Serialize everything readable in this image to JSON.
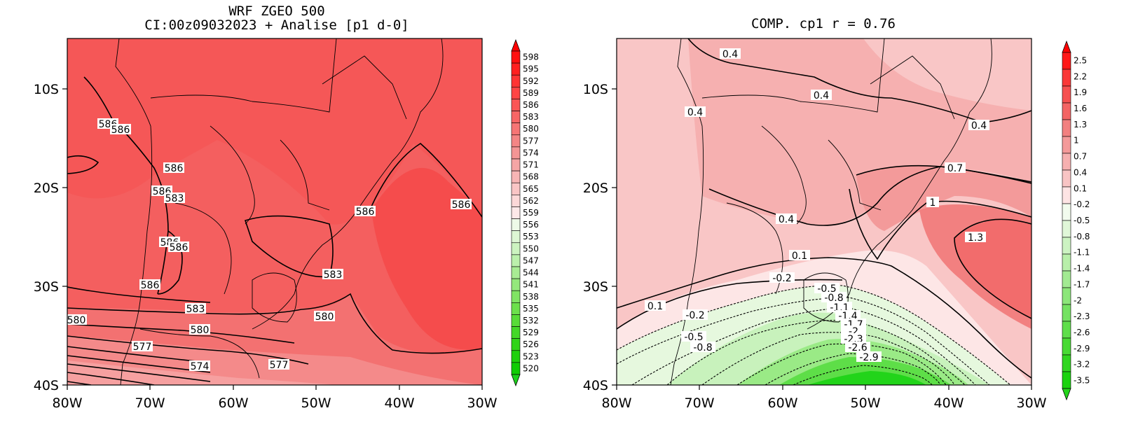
{
  "panels": [
    {
      "id": "left",
      "title_line1": "WRF ZGEO 500",
      "title_line2": "CI:00z09032023 + Analise  [p1 d-0]",
      "x_ticks": [
        "80W",
        "70W",
        "60W",
        "50W",
        "40W",
        "30W"
      ],
      "y_ticks": [
        "10S",
        "20S",
        "30S",
        "40S"
      ],
      "colorbar": {
        "labels": [
          "598",
          "595",
          "592",
          "589",
          "586",
          "583",
          "580",
          "577",
          "574",
          "571",
          "568",
          "565",
          "562",
          "559",
          "556",
          "553",
          "550",
          "547",
          "544",
          "541",
          "538",
          "535",
          "532",
          "529",
          "526",
          "523",
          "520"
        ],
        "colors": [
          "#ff1010",
          "#ff2020",
          "#ff3434",
          "#ff4545",
          "#fa5555",
          "#f86565",
          "#f67575",
          "#f48585",
          "#f49595",
          "#f5a5a5",
          "#f7b5b5",
          "#f9c5c5",
          "#fcd8d8",
          "#fde8e8",
          "#eefae8",
          "#ddf6d4",
          "#ccf3c0",
          "#bbf0ac",
          "#a8ec94",
          "#94e87c",
          "#80e464",
          "#6ce04c",
          "#58dc38",
          "#44d828",
          "#30d418",
          "#1ed00c",
          "#10cc04"
        ],
        "top_arrow_color": "#ff0000",
        "bottom_arrow_color": "#1cd21c"
      },
      "contour_labels": [
        "586",
        "586",
        "586",
        "586",
        "583",
        "586",
        "586",
        "586",
        "586",
        "583",
        "586",
        "580",
        "583",
        "580",
        "580",
        "577",
        "574",
        "577"
      ]
    },
    {
      "id": "right",
      "title_line1": "COMP. cp1   r =   0.76",
      "title_line2": "",
      "x_ticks": [
        "80W",
        "70W",
        "60W",
        "50W",
        "40W",
        "30W"
      ],
      "y_ticks": [
        "10S",
        "20S",
        "30S",
        "40S"
      ],
      "colorbar": {
        "labels": [
          "2.5",
          "2.2",
          "1.9",
          "1.6",
          "1.3",
          "1",
          "0.7",
          "0.4",
          "0.1",
          "-0.2",
          "-0.5",
          "-0.8",
          "-1.1",
          "-1.4",
          "-1.7",
          "-2",
          "-2.3",
          "-2.6",
          "-2.9",
          "-3.2",
          "-3.5"
        ],
        "colors": [
          "#ff1818",
          "#fa3838",
          "#f65050",
          "#f36464",
          "#f28080",
          "#f49a9a",
          "#f6b0b0",
          "#f8c4c4",
          "#fde4e4",
          "#f2fbee",
          "#e0f7d8",
          "#ccf3c2",
          "#b8efaa",
          "#a2ea92",
          "#8ce67a",
          "#74e262",
          "#5ede4a",
          "#48da34",
          "#30d620",
          "#1ad20e"
        ],
        "top_arrow_color": "#ff0000",
        "bottom_arrow_color": "#22d41a"
      },
      "contour_labels": [
        "0.4",
        "0.4",
        "0.4",
        "0.4",
        "0.7",
        "1",
        "1.3",
        "0.4",
        "0.1",
        "-0.2",
        "0.1",
        "-0.2",
        "-0.5",
        "-0.8",
        "-0.5",
        "-0.8",
        "-1.1",
        "-1.4",
        "-1.7",
        "-2",
        "-2.3",
        "-2.6",
        "-2.9"
      ]
    }
  ]
}
